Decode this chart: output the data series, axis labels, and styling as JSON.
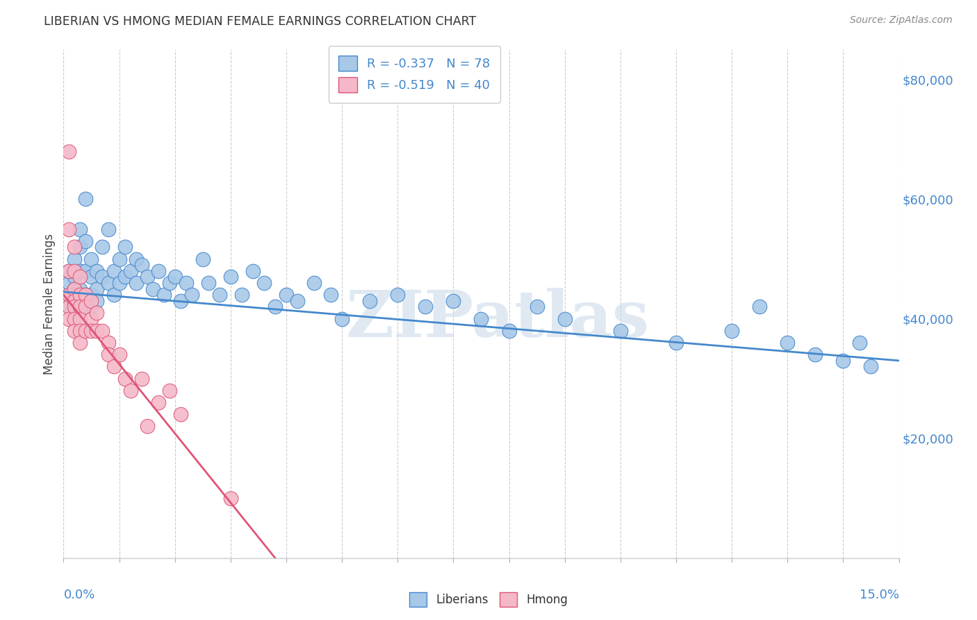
{
  "title": "LIBERIAN VS HMONG MEDIAN FEMALE EARNINGS CORRELATION CHART",
  "source": "Source: ZipAtlas.com",
  "ylabel": "Median Female Earnings",
  "right_yticks": [
    "$80,000",
    "$60,000",
    "$40,000",
    "$20,000"
  ],
  "right_ytick_values": [
    80000,
    60000,
    40000,
    20000
  ],
  "xlim": [
    0.0,
    0.15
  ],
  "ylim": [
    0,
    85000
  ],
  "liberian_color": "#a8c8e8",
  "hmong_color": "#f5b8c8",
  "liberian_line_color": "#4488cc",
  "hmong_line_color": "#dd5577",
  "watermark": "ZIPatlas",
  "watermark_color": "#c8d8e8",
  "liberian_R": -0.337,
  "liberian_N": 78,
  "hmong_R": -0.519,
  "hmong_N": 40,
  "liberian_x": [
    0.001,
    0.001,
    0.001,
    0.001,
    0.002,
    0.002,
    0.002,
    0.002,
    0.002,
    0.003,
    0.003,
    0.003,
    0.003,
    0.003,
    0.004,
    0.004,
    0.004,
    0.004,
    0.005,
    0.005,
    0.005,
    0.005,
    0.006,
    0.006,
    0.006,
    0.007,
    0.007,
    0.008,
    0.008,
    0.009,
    0.009,
    0.01,
    0.01,
    0.011,
    0.011,
    0.012,
    0.013,
    0.013,
    0.014,
    0.015,
    0.016,
    0.017,
    0.018,
    0.019,
    0.02,
    0.021,
    0.022,
    0.023,
    0.025,
    0.026,
    0.028,
    0.03,
    0.032,
    0.034,
    0.036,
    0.038,
    0.04,
    0.042,
    0.045,
    0.048,
    0.05,
    0.055,
    0.06,
    0.065,
    0.07,
    0.075,
    0.08,
    0.085,
    0.09,
    0.1,
    0.11,
    0.12,
    0.125,
    0.13,
    0.135,
    0.14,
    0.143,
    0.145
  ],
  "liberian_y": [
    44000,
    46000,
    42000,
    48000,
    50000,
    45000,
    47000,
    43000,
    44000,
    55000,
    52000,
    48000,
    45000,
    43000,
    60000,
    53000,
    48000,
    44000,
    50000,
    47000,
    44000,
    42000,
    48000,
    45000,
    43000,
    52000,
    47000,
    55000,
    46000,
    48000,
    44000,
    50000,
    46000,
    52000,
    47000,
    48000,
    50000,
    46000,
    49000,
    47000,
    45000,
    48000,
    44000,
    46000,
    47000,
    43000,
    46000,
    44000,
    50000,
    46000,
    44000,
    47000,
    44000,
    48000,
    46000,
    42000,
    44000,
    43000,
    46000,
    44000,
    40000,
    43000,
    44000,
    42000,
    43000,
    40000,
    38000,
    42000,
    40000,
    38000,
    36000,
    38000,
    42000,
    36000,
    34000,
    33000,
    36000,
    32000
  ],
  "hmong_x": [
    0.001,
    0.001,
    0.001,
    0.001,
    0.001,
    0.001,
    0.002,
    0.002,
    0.002,
    0.002,
    0.002,
    0.002,
    0.002,
    0.003,
    0.003,
    0.003,
    0.003,
    0.003,
    0.003,
    0.004,
    0.004,
    0.004,
    0.005,
    0.005,
    0.005,
    0.006,
    0.006,
    0.007,
    0.008,
    0.008,
    0.009,
    0.01,
    0.011,
    0.012,
    0.014,
    0.015,
    0.017,
    0.019,
    0.021,
    0.03
  ],
  "hmong_y": [
    68000,
    55000,
    48000,
    44000,
    42000,
    40000,
    52000,
    48000,
    45000,
    43000,
    42000,
    40000,
    38000,
    47000,
    44000,
    42000,
    40000,
    38000,
    36000,
    44000,
    42000,
    38000,
    43000,
    40000,
    38000,
    41000,
    38000,
    38000,
    36000,
    34000,
    32000,
    34000,
    30000,
    28000,
    30000,
    22000,
    26000,
    28000,
    24000,
    10000
  ],
  "liberian_trendline_x": [
    0.0,
    0.15
  ],
  "liberian_trendline_y": [
    44500,
    33000
  ],
  "hmong_trendline_x": [
    0.0,
    0.038
  ],
  "hmong_trendline_y": [
    44000,
    0
  ]
}
